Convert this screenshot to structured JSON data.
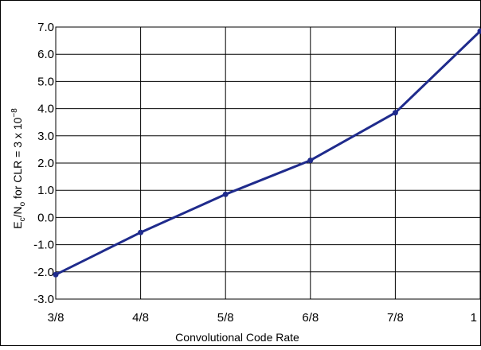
{
  "chart_data": {
    "type": "line",
    "xlabel": "Convolutional Code Rate",
    "ylabel_parts": {
      "e": "E",
      "e_sub": "c",
      "slash": "/N",
      "n_sub": "o",
      "mid": " for CLR = 3 x 10",
      "exp": "−8"
    },
    "categories": [
      "3/8",
      "4/8",
      "5/8",
      "6/8",
      "7/8",
      "1"
    ],
    "y_ticks": [
      "7.0",
      "6.0",
      "5.0",
      "4.0",
      "3.0",
      "2.0",
      "1.0",
      "0.0",
      "-1.0",
      "-2.0",
      "-3.0"
    ],
    "ylim": [
      -3.0,
      7.0
    ],
    "grid": true,
    "line_color": "#1f2b8c",
    "series": [
      {
        "values": [
          -2.1,
          -0.55,
          0.85,
          2.1,
          3.85,
          6.85
        ]
      }
    ]
  }
}
